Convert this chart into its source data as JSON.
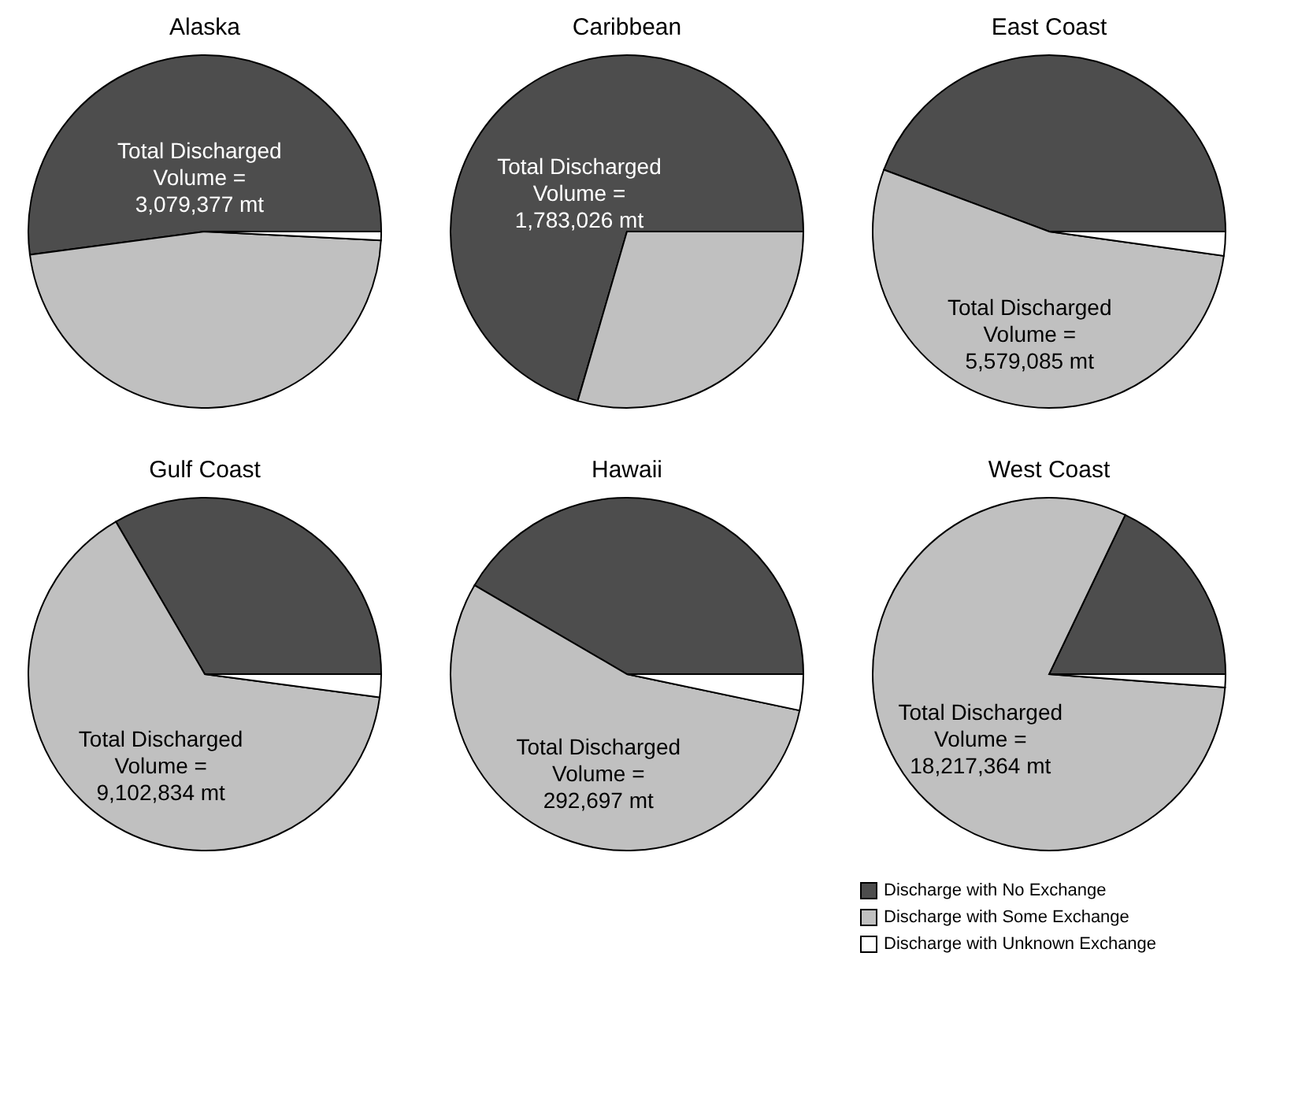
{
  "chart_data": [
    {
      "type": "pie",
      "title": "Alaska",
      "values": [
        52.1,
        47.1,
        0.8
      ],
      "colors": [
        "#4d4d4d",
        "#c0c0c0",
        "#ffffff"
      ],
      "annotations": [
        "Total Discharged\nVolume =\n3,079,377 mt"
      ]
    },
    {
      "type": "pie",
      "title": "Caribbean",
      "values": [
        70.5,
        29.5,
        0
      ],
      "colors": [
        "#4d4d4d",
        "#c0c0c0",
        "#ffffff"
      ],
      "annotations": [
        "Total Discharged\nVolume =\n1,783,026 mt"
      ]
    },
    {
      "type": "pie",
      "title": "East Coast",
      "values": [
        44.3,
        53.5,
        2.2
      ],
      "colors": [
        "#4d4d4d",
        "#c0c0c0",
        "#ffffff"
      ],
      "annotations": [
        "Total Discharged\nVolume =\n5,579,085 mt"
      ]
    },
    {
      "type": "pie",
      "title": "Gulf Coast",
      "values": [
        33.4,
        64.5,
        2.1
      ],
      "colors": [
        "#4d4d4d",
        "#c0c0c0",
        "#ffffff"
      ],
      "annotations": [
        "Total Discharged\nVolume =\n9,102,834 mt"
      ]
    },
    {
      "type": "pie",
      "title": "Hawaii",
      "values": [
        41.6,
        55.1,
        3.3
      ],
      "colors": [
        "#4d4d4d",
        "#c0c0c0",
        "#ffffff"
      ],
      "annotations": [
        "Total Discharged\nVolume =\n292,697 mt"
      ]
    },
    {
      "type": "pie",
      "title": "West Coast",
      "categories": [
        "Discharge with No Exchange",
        "Discharge with Some Exchange",
        "Discharge with Unknown Exchange"
      ],
      "values": [
        17.9,
        80.9,
        1.2
      ],
      "colors": [
        "#4d4d4d",
        "#c0c0c0",
        "#ffffff"
      ],
      "annotations": [
        "Total Discharged\nVolume =\n18,217,364 mt"
      ],
      "legend": "bottom"
    }
  ]
}
